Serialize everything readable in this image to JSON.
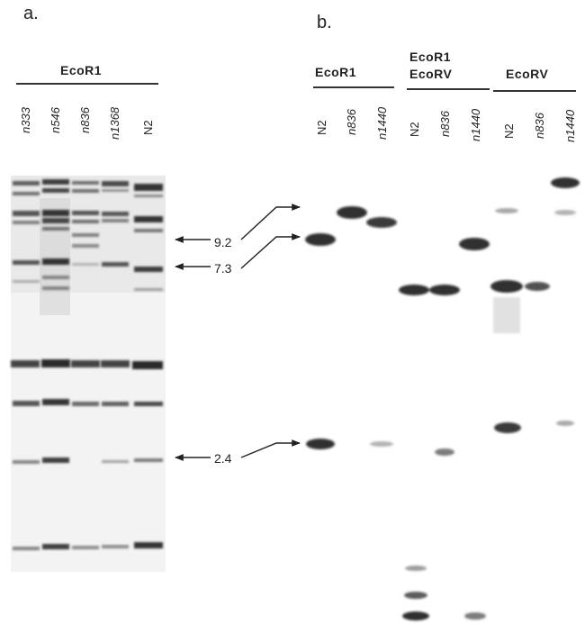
{
  "panel_a": {
    "letter": "a.",
    "enzyme": "EcoR1",
    "lanes": [
      "n333",
      "n546",
      "n836",
      "n1368",
      "N2"
    ]
  },
  "panel_b": {
    "letter": "b.",
    "groups": [
      {
        "enzyme_lines": [
          "EcoR1"
        ],
        "lanes": [
          "N2",
          "n836",
          "n1440"
        ]
      },
      {
        "enzyme_lines": [
          "EcoR1",
          "EcoRV"
        ],
        "lanes": [
          "N2",
          "n836",
          "n1440"
        ]
      },
      {
        "enzyme_lines": [
          "EcoRV"
        ],
        "lanes": [
          "N2",
          "n836",
          "n1440"
        ]
      }
    ]
  },
  "size_markers": [
    "9.2",
    "7.3",
    "2.4"
  ]
}
